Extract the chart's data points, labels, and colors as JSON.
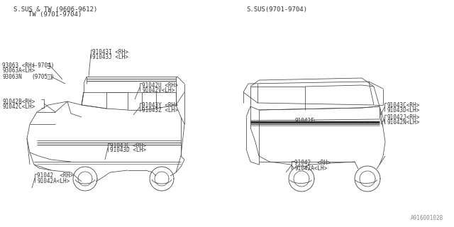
{
  "bg_color": "#ffffff",
  "line_color": "#444444",
  "text_color": "#333333",
  "title_left_1": "S.SUS & TW (9606-9612)",
  "title_left_2": "TW (9701-9704)",
  "title_right": "S.SUS(9701-9704)",
  "part_number_ref": "A916001028",
  "font_size": 5.5,
  "title_font_size": 6.5
}
